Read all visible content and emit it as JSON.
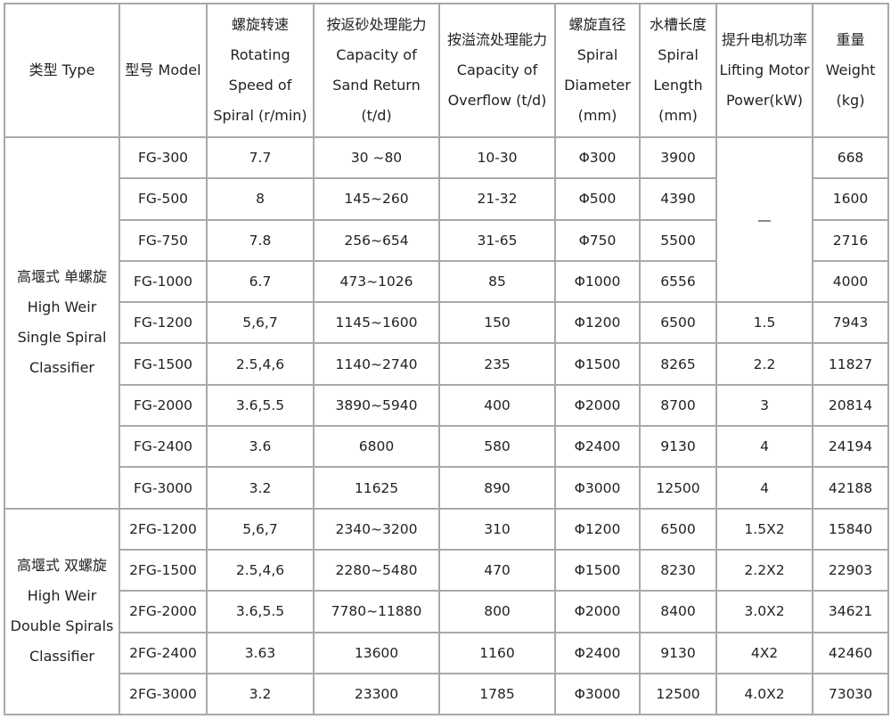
{
  "headers": [
    "类型 Type",
    "型号 Model",
    "螺旋转速 Rotating Speed of Spiral (r/min)",
    "按返砂处理能力 Capacity of Sand Return (t/d)",
    "按溢流处理能力 Capacity of Overflow (t/d)",
    "螺旋直径 Spiral Diameter (mm)",
    "水槽长度 Spiral Length (mm)",
    "提升电机功率 Lifting Motor Power(kW)",
    "重量 Weight (kg)"
  ],
  "groups": [
    {
      "type": "高堰式 单螺旋 High Weir Single Spiral Classifier",
      "rows": [
        [
          "FG-300",
          "7.7",
          "30 ~80",
          "10-30",
          "Φ300",
          "3900",
          "—",
          "668"
        ],
        [
          "FG-500",
          "8",
          "145~260",
          "21-32",
          "Φ500",
          "4390",
          null,
          "1600"
        ],
        [
          "FG-750",
          "7.8",
          "256~654",
          "31-65",
          "Φ750",
          "5500",
          null,
          "2716"
        ],
        [
          "FG-1000",
          "6.7",
          "473~1026",
          "85",
          "Φ1000",
          "6556",
          null,
          "4000"
        ],
        [
          "FG-1200",
          "5,6,7",
          "1145~1600",
          "150",
          "Φ1200",
          "6500",
          "1.5",
          "7943"
        ],
        [
          "FG-1500",
          "2.5,4,6",
          "1140~2740",
          "235",
          "Φ1500",
          "8265",
          "2.2",
          "11827"
        ],
        [
          "FG-2000",
          "3.6,5.5",
          "3890~5940",
          "400",
          "Φ2000",
          "8700",
          "3",
          "20814"
        ],
        [
          "FG-2400",
          "3.6",
          "6800",
          "580",
          "Φ2400",
          "9130",
          "4",
          "24194"
        ],
        [
          "FG-3000",
          "3.2",
          "11625",
          "890",
          "Φ3000",
          "12500",
          "4",
          "42188"
        ]
      ]
    },
    {
      "type": "高堰式 双螺旋 High Weir Double Spirals Classifier",
      "rows": [
        [
          "2FG-1200",
          "5,6,7",
          "2340~3200",
          "310",
          "Φ1200",
          "6500",
          "1.5X2",
          "15840"
        ],
        [
          "2FG-1500",
          "2.5,4,6",
          "2280~5480",
          "470",
          "Φ1500",
          "8230",
          "2.2X2",
          "22903"
        ],
        [
          "2FG-2000",
          "3.6,5.5",
          "7780~11880",
          "800",
          "Φ2000",
          "8400",
          "3.0X2",
          "34621"
        ],
        [
          "2FG-2400",
          "3.63",
          "13600",
          "1160",
          "Φ2400",
          "9130",
          "4X2",
          "42460"
        ],
        [
          "2FG-3000",
          "3.2",
          "23300",
          "1785",
          "Φ3000",
          "12500",
          "4.0X2",
          "73030"
        ]
      ]
    }
  ]
}
